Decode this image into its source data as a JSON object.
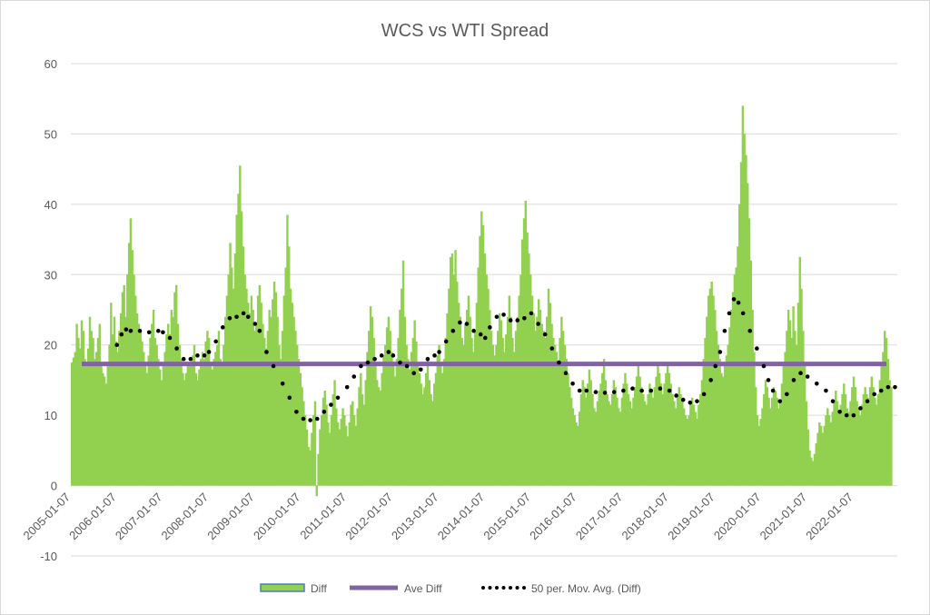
{
  "chart_data": {
    "type": "bar",
    "title": "WCS vs WTI Spread",
    "xlabel": "",
    "ylabel": "",
    "ylim": [
      -10,
      60
    ],
    "yticks": [
      "-10",
      "0",
      "10",
      "20",
      "30",
      "40",
      "50",
      "60"
    ],
    "xticks": [
      "2005-01-07",
      "2006-01-07",
      "2007-01-07",
      "2008-01-07",
      "2009-01-07",
      "2010-01-07",
      "2011-01-07",
      "2012-01-07",
      "2013-01-07",
      "2014-01-07",
      "2015-01-07",
      "2016-01-07",
      "2017-01-07",
      "2018-01-07",
      "2019-01-07",
      "2020-01-07",
      "2021-01-07",
      "2022-01-07"
    ],
    "grid": true,
    "legend_position": "bottom",
    "series": [
      {
        "name": "Diff",
        "type": "bar",
        "color": "#92d050",
        "weekly_values": [
          17.5,
          18.2,
          19.0,
          23.0,
          21.0,
          19.5,
          23.5,
          22.0,
          18.0,
          17.5,
          19.5,
          24.0,
          22.0,
          21.0,
          18.0,
          19.0,
          21.0,
          23.0,
          17.5,
          16.0,
          15.5,
          14.5,
          17.0,
          20.0,
          26.0,
          21.5,
          24.0,
          20.5,
          19.0,
          22.0,
          24.5,
          27.5,
          28.5,
          24.0,
          30.0,
          34.5,
          38.0,
          33.5,
          30.0,
          27.0,
          24.5,
          23.0,
          22.0,
          20.5,
          19.0,
          17.0,
          16.0,
          18.5,
          21.0,
          23.0,
          25.0,
          21.0,
          20.0,
          18.0,
          16.5,
          15.0,
          17.0,
          19.0,
          21.5,
          23.0,
          21.5,
          25.0,
          24.0,
          27.5,
          28.5,
          23.0,
          20.0,
          18.0,
          16.0,
          15.0,
          16.0,
          17.5,
          17.0,
          17.0,
          18.5,
          20.0,
          16.0,
          15.0,
          16.5,
          18.0,
          19.0,
          18.0,
          20.5,
          22.0,
          21.0,
          17.0,
          16.5,
          18.0,
          19.0,
          20.0,
          22.0,
          18.0,
          17.5,
          20.0,
          24.0,
          27.0,
          30.0,
          34.5,
          31.0,
          28.0,
          33.0,
          38.5,
          41.5,
          45.5,
          39.0,
          34.0,
          30.0,
          28.0,
          26.0,
          24.5,
          27.0,
          25.0,
          22.0,
          23.0,
          27.0,
          28.5,
          26.0,
          23.0,
          21.0,
          19.5,
          22.0,
          25.0,
          24.0,
          26.5,
          29.0,
          27.5,
          24.0,
          20.0,
          18.0,
          22.0,
          27.0,
          31.0,
          38.5,
          34.0,
          28.0,
          26.0,
          24.0,
          22.0,
          20.0,
          18.0,
          16.0,
          14.0,
          12.0,
          10.0,
          8.0,
          5.5,
          5.0,
          7.5,
          10.0,
          12.0,
          -1.5,
          4.5,
          8.0,
          10.0,
          12.5,
          13.5,
          11.5,
          9.0,
          7.5,
          10.0,
          13.0,
          15.0,
          11.0,
          9.0,
          8.0,
          9.5,
          11.0,
          10.0,
          8.5,
          7.0,
          9.0,
          11.5,
          12.0,
          10.0,
          8.5,
          11.0,
          14.0,
          16.0,
          13.0,
          11.5,
          15.0,
          19.0,
          22.0,
          25.5,
          24.0,
          21.0,
          17.5,
          15.0,
          14.0,
          13.5,
          16.0,
          18.5,
          20.0,
          22.5,
          24.0,
          22.0,
          19.0,
          17.0,
          15.5,
          18.0,
          21.0,
          25.0,
          28.0,
          32.0,
          24.0,
          20.0,
          18.0,
          16.5,
          19.0,
          21.0,
          23.5,
          20.5,
          17.5,
          16.0,
          14.5,
          13.0,
          14.0,
          16.0,
          18.0,
          15.0,
          13.0,
          12.0,
          14.5,
          16.0,
          18.5,
          20.0,
          17.5,
          16.0,
          18.0,
          21.0,
          24.5,
          28.0,
          32.5,
          33.0,
          30.0,
          33.5,
          29.0,
          26.0,
          24.0,
          21.0,
          20.0,
          23.0,
          25.0,
          27.0,
          24.0,
          21.0,
          19.0,
          22.0,
          26.0,
          31.0,
          35.5,
          39.0,
          37.0,
          33.0,
          30.0,
          28.0,
          25.0,
          22.0,
          20.0,
          18.5,
          20.0,
          22.0,
          24.5,
          23.5,
          21.0,
          19.0,
          21.5,
          24.0,
          27.0,
          24.0,
          21.0,
          19.0,
          22.0,
          24.0,
          27.0,
          30.0,
          35.0,
          38.0,
          40.5,
          36.0,
          33.0,
          30.0,
          27.0,
          24.5,
          22.0,
          24.0,
          26.5,
          25.0,
          23.0,
          22.0,
          21.0,
          24.0,
          28.0,
          26.0,
          23.0,
          21.0,
          20.0,
          19.0,
          17.0,
          21.0,
          24.0,
          22.0,
          20.0,
          18.0,
          16.0,
          14.0,
          12.5,
          11.0,
          10.0,
          9.0,
          8.5,
          10.5,
          13.0,
          15.0,
          14.0,
          12.5,
          14.5,
          16.5,
          15.0,
          13.0,
          11.0,
          10.5,
          12.0,
          13.5,
          14.5,
          16.0,
          18.0,
          15.0,
          13.0,
          12.0,
          11.5,
          13.0,
          15.0,
          14.0,
          12.5,
          11.0,
          10.5,
          12.5,
          14.5,
          16.0,
          14.5,
          13.0,
          12.0,
          11.0,
          12.5,
          14.0,
          15.5,
          17.0,
          15.5,
          14.0,
          13.0,
          12.0,
          11.5,
          13.0,
          14.5,
          13.5,
          12.5,
          14.0,
          15.5,
          17.0,
          16.0,
          14.5,
          13.0,
          14.5,
          16.0,
          17.5,
          16.0,
          14.5,
          13.0,
          12.0,
          11.0,
          12.5,
          14.0,
          13.0,
          12.5,
          11.0,
          10.0,
          9.5,
          10.0,
          11.5,
          12.5,
          11.5,
          10.5,
          9.5,
          11.5,
          13.0,
          15.0,
          18.0,
          21.0,
          24.0,
          27.0,
          28.0,
          29.0,
          27.0,
          25.0,
          22.0,
          20.0,
          18.0,
          16.0,
          15.5,
          17.0,
          18.5,
          20.0,
          22.5,
          25.0,
          27.5,
          30.0,
          31.0,
          34.0,
          40.0,
          46.0,
          54.0,
          50.0,
          47.0,
          43.0,
          38.0,
          32.0,
          25.0,
          19.0,
          14.0,
          10.0,
          8.5,
          9.5,
          11.0,
          13.0,
          15.0,
          14.0,
          12.5,
          11.0,
          12.5,
          14.0,
          13.5,
          12.5,
          11.0,
          12.0,
          14.5,
          17.0,
          19.0,
          22.0,
          25.0,
          23.5,
          21.0,
          25.5,
          22.0,
          20.0,
          26.0,
          32.5,
          28.0,
          22.0,
          17.0,
          12.0,
          8.0,
          5.0,
          4.0,
          3.5,
          4.5,
          6.0,
          7.5,
          9.0,
          8.5,
          7.5,
          8.5,
          10.0,
          11.0,
          10.0,
          9.0,
          10.5,
          12.0,
          13.5,
          12.0,
          10.5,
          11.5,
          13.0,
          14.5,
          13.0,
          11.0,
          10.5,
          12.0,
          14.0,
          15.5,
          14.0,
          12.0,
          11.0,
          10.0,
          11.5,
          13.0,
          14.0,
          13.0,
          12.5,
          14.0,
          15.5,
          14.0,
          12.5,
          11.5,
          13.0,
          15.0,
          17.0,
          19.0,
          22.0,
          21.0,
          18.0,
          15.0,
          14.0
        ]
      },
      {
        "name": "Ave Diff",
        "type": "line",
        "color": "#8064a2",
        "value": 17.3
      },
      {
        "name": "50 per. Mov. Avg. (Diff)",
        "type": "line",
        "style": "dotted",
        "color": "#000000",
        "points": [
          [
            2006.0,
            20.0
          ],
          [
            2006.1,
            21.5
          ],
          [
            2006.2,
            22.2
          ],
          [
            2006.3,
            22.0
          ],
          [
            2006.5,
            22.0
          ],
          [
            2006.7,
            21.8
          ],
          [
            2006.9,
            22.0
          ],
          [
            2007.0,
            21.8
          ],
          [
            2007.15,
            21.0
          ],
          [
            2007.3,
            19.5
          ],
          [
            2007.45,
            18.0
          ],
          [
            2007.6,
            18.0
          ],
          [
            2007.75,
            18.5
          ],
          [
            2007.9,
            18.5
          ],
          [
            2008.0,
            19.0
          ],
          [
            2008.15,
            20.5
          ],
          [
            2008.3,
            22.5
          ],
          [
            2008.45,
            23.8
          ],
          [
            2008.6,
            24.0
          ],
          [
            2008.75,
            24.5
          ],
          [
            2008.85,
            24.0
          ],
          [
            2009.0,
            23.0
          ],
          [
            2009.1,
            22.0
          ],
          [
            2009.25,
            19.0
          ],
          [
            2009.4,
            17.0
          ],
          [
            2009.6,
            14.5
          ],
          [
            2009.75,
            12.5
          ],
          [
            2009.9,
            10.5
          ],
          [
            2010.05,
            9.5
          ],
          [
            2010.2,
            9.3
          ],
          [
            2010.35,
            9.5
          ],
          [
            2010.5,
            10.5
          ],
          [
            2010.65,
            11.5
          ],
          [
            2010.8,
            12.5
          ],
          [
            2011.0,
            14.0
          ],
          [
            2011.15,
            15.5
          ],
          [
            2011.3,
            17.0
          ],
          [
            2011.45,
            17.5
          ],
          [
            2011.6,
            18.0
          ],
          [
            2011.75,
            18.5
          ],
          [
            2011.9,
            19.0
          ],
          [
            2012.0,
            18.5
          ],
          [
            2012.15,
            17.5
          ],
          [
            2012.3,
            17.0
          ],
          [
            2012.45,
            16.0
          ],
          [
            2012.6,
            16.5
          ],
          [
            2012.75,
            18.0
          ],
          [
            2012.9,
            18.5
          ],
          [
            2013.0,
            19.0
          ],
          [
            2013.15,
            20.5
          ],
          [
            2013.3,
            22.0
          ],
          [
            2013.45,
            23.2
          ],
          [
            2013.6,
            23.0
          ],
          [
            2013.75,
            22.0
          ],
          [
            2013.9,
            21.5
          ],
          [
            2014.0,
            21.0
          ],
          [
            2014.1,
            22.5
          ],
          [
            2014.25,
            24.0
          ],
          [
            2014.4,
            24.3
          ],
          [
            2014.55,
            23.5
          ],
          [
            2014.7,
            23.5
          ],
          [
            2014.85,
            23.8
          ],
          [
            2015.0,
            24.5
          ],
          [
            2015.15,
            23.0
          ],
          [
            2015.3,
            21.5
          ],
          [
            2015.45,
            19.5
          ],
          [
            2015.6,
            17.5
          ],
          [
            2015.75,
            16.0
          ],
          [
            2015.9,
            14.5
          ],
          [
            2016.05,
            13.5
          ],
          [
            2016.2,
            13.5
          ],
          [
            2016.4,
            13.3
          ],
          [
            2016.6,
            13.2
          ],
          [
            2016.8,
            13.3
          ],
          [
            2017.0,
            13.5
          ],
          [
            2017.2,
            13.8
          ],
          [
            2017.4,
            13.5
          ],
          [
            2017.6,
            13.5
          ],
          [
            2017.8,
            13.8
          ],
          [
            2018.0,
            13.5
          ],
          [
            2018.15,
            12.8
          ],
          [
            2018.3,
            12.2
          ],
          [
            2018.45,
            11.8
          ],
          [
            2018.6,
            12.0
          ],
          [
            2018.75,
            13.0
          ],
          [
            2018.9,
            15.0
          ],
          [
            2019.0,
            17.0
          ],
          [
            2019.1,
            19.0
          ],
          [
            2019.2,
            22.0
          ],
          [
            2019.3,
            24.5
          ],
          [
            2019.4,
            26.5
          ],
          [
            2019.5,
            26.0
          ],
          [
            2019.6,
            24.5
          ],
          [
            2019.75,
            22.0
          ],
          [
            2019.9,
            19.5
          ],
          [
            2020.05,
            17.0
          ],
          [
            2020.15,
            15.0
          ],
          [
            2020.25,
            13.5
          ],
          [
            2020.4,
            12.0
          ],
          [
            2020.55,
            13.0
          ],
          [
            2020.7,
            15.0
          ],
          [
            2020.85,
            16.0
          ],
          [
            2021.0,
            15.5
          ],
          [
            2021.2,
            14.5
          ],
          [
            2021.4,
            13.5
          ],
          [
            2021.55,
            12.0
          ],
          [
            2021.7,
            10.5
          ],
          [
            2021.85,
            10.0
          ],
          [
            2022.0,
            10.0
          ],
          [
            2022.15,
            11.0
          ],
          [
            2022.3,
            12.0
          ],
          [
            2022.45,
            13.0
          ],
          [
            2022.6,
            13.5
          ],
          [
            2022.75,
            14.0
          ],
          [
            2022.9,
            14.0
          ]
        ]
      }
    ]
  }
}
